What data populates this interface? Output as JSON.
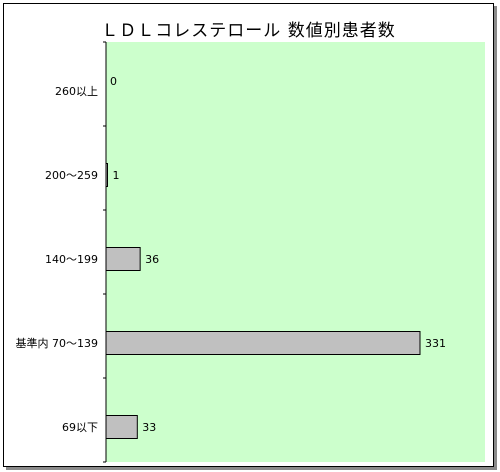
{
  "chart_data": {
    "type": "bar",
    "orientation": "horizontal",
    "title": "ＬＤＬコレステロール 数値別患者数",
    "categories": [
      "260以上",
      "200～259",
      "140～199",
      "基準内 70～139",
      "69以下"
    ],
    "values": [
      0,
      1,
      36,
      331,
      33
    ],
    "xlim": [
      0,
      350
    ],
    "xlabel": "",
    "ylabel": "",
    "grid": false,
    "legend": "none"
  },
  "colors": {
    "plot_background": "#ccffcc",
    "bar_fill": "#c0c0c0",
    "bar_stroke": "#000000",
    "axis": "#000000",
    "frame_shadow": "#8a8a8a"
  }
}
